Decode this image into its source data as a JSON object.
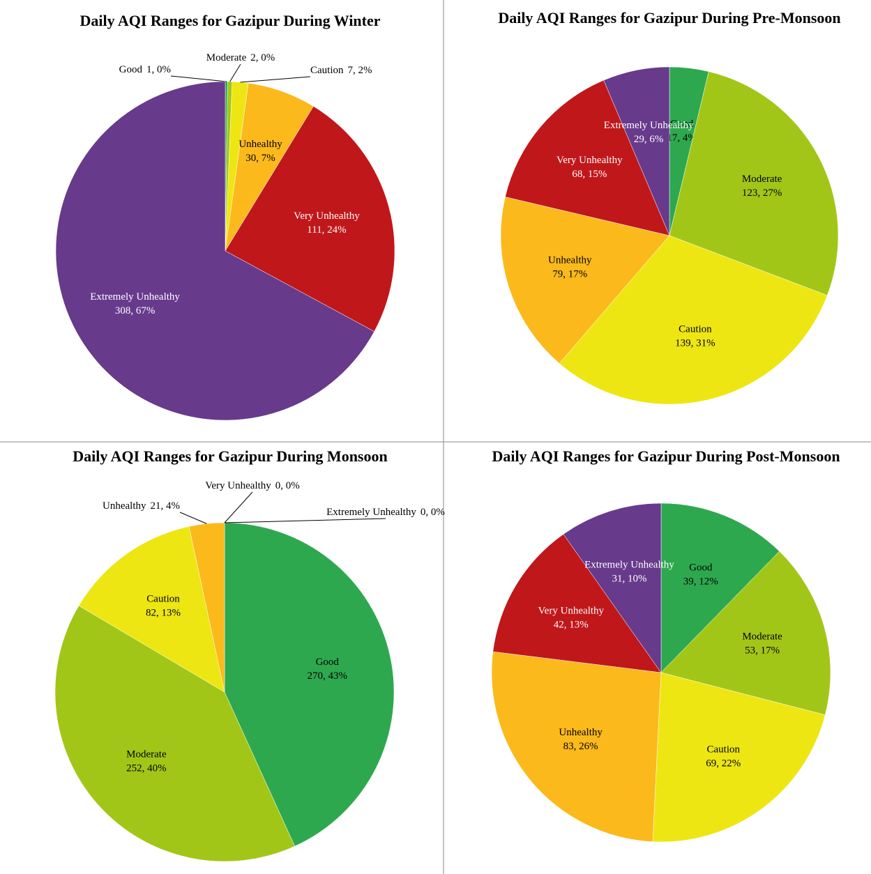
{
  "chart_data": [
    {
      "type": "pie",
      "title": "Daily AQI Ranges for Gazipur During Winter",
      "categories": [
        "Good",
        "Moderate",
        "Caution",
        "Unhealthy",
        "Very Unhealthy",
        "Extremely Unhealthy"
      ],
      "values": [
        1,
        2,
        7,
        30,
        111,
        308
      ],
      "value_labels": [
        "1, 0%",
        "2, 0%",
        "7, 2%",
        "30, 7%",
        "111, 24%",
        "308, 67%"
      ],
      "colors": [
        "#2ea84f",
        "#a2c617",
        "#ede613",
        "#fbb91c",
        "#c0171b",
        "#673a8c"
      ]
    },
    {
      "type": "pie",
      "title": "Daily AQI Ranges for Gazipur During Pre-Monsoon",
      "categories": [
        "Good",
        "Moderate",
        "Caution",
        "Unhealthy",
        "Very Unhealthy",
        "Extremely Unhealthy"
      ],
      "values": [
        17,
        123,
        139,
        79,
        68,
        29
      ],
      "value_labels": [
        "17, 4%",
        "123, 27%",
        "139, 31%",
        "79, 17%",
        "68, 15%",
        "29, 6%"
      ],
      "colors": [
        "#2ea84f",
        "#a2c617",
        "#ede613",
        "#fbb91c",
        "#c0171b",
        "#673a8c"
      ]
    },
    {
      "type": "pie",
      "title": "Daily AQI Ranges for Gazipur During Monsoon",
      "categories": [
        "Good",
        "Moderate",
        "Caution",
        "Unhealthy",
        "Very Unhealthy",
        "Extremely Unhealthy"
      ],
      "values": [
        270,
        252,
        82,
        21,
        0,
        0
      ],
      "value_labels": [
        "270, 43%",
        "252, 40%",
        "82, 13%",
        "21, 4%",
        "0, 0%",
        "0, 0%"
      ],
      "colors": [
        "#2ea84f",
        "#a2c617",
        "#ede613",
        "#fbb91c",
        "#c0171b",
        "#673a8c"
      ]
    },
    {
      "type": "pie",
      "title": "Daily AQI Ranges for Gazipur During Post-Monsoon",
      "categories": [
        "Good",
        "Moderate",
        "Caution",
        "Unhealthy",
        "Very Unhealthy",
        "Extremely Unhealthy"
      ],
      "values": [
        39,
        53,
        69,
        83,
        42,
        31
      ],
      "value_labels": [
        "39, 12%",
        "53, 17%",
        "69, 22%",
        "83, 26%",
        "42, 13%",
        "31, 10%"
      ],
      "colors": [
        "#2ea84f",
        "#a2c617",
        "#ede613",
        "#fbb91c",
        "#c0171b",
        "#673a8c"
      ]
    }
  ]
}
